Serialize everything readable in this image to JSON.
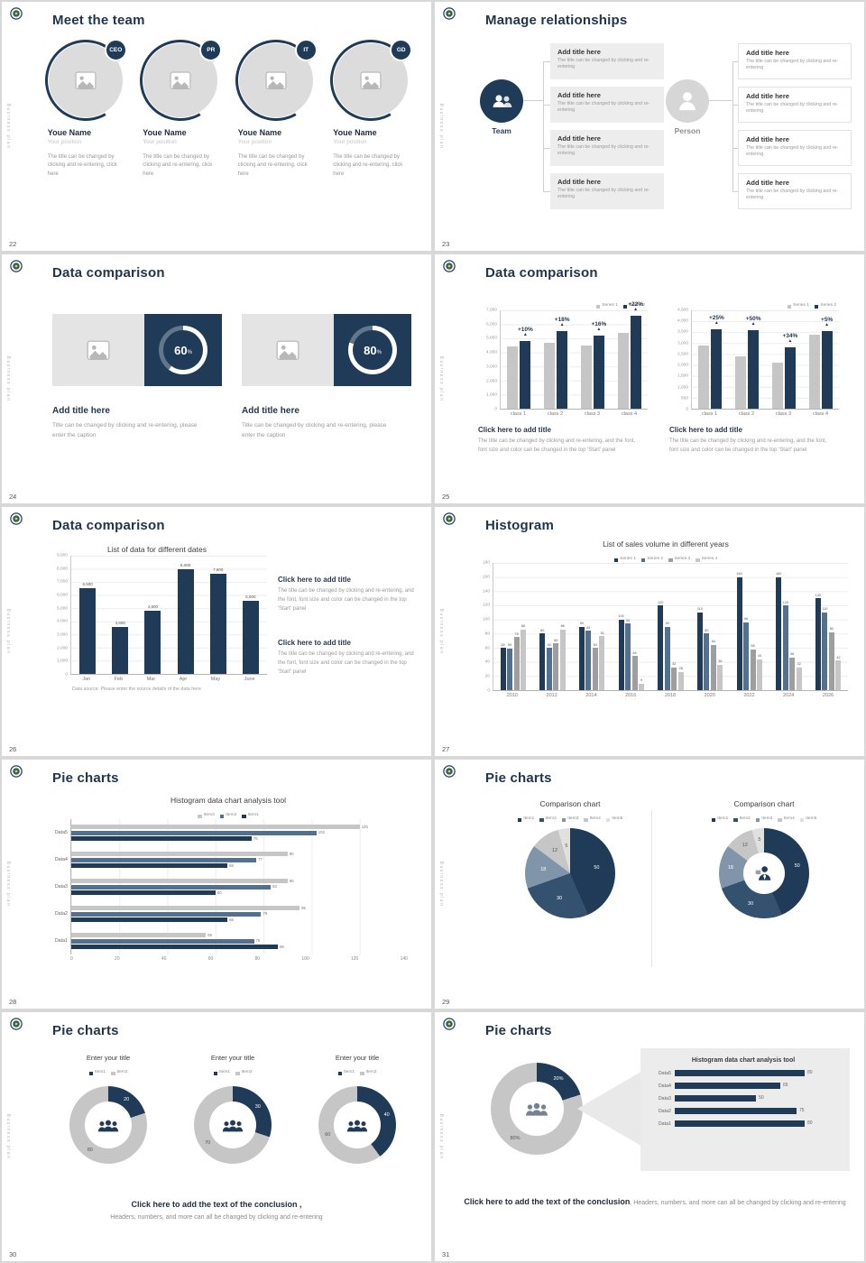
{
  "global": {
    "vertical_text": "Business plan",
    "palette": {
      "navy": "#1f3b57",
      "navy2": "#34516f",
      "steel": "#53718f",
      "slate": "#8095aa",
      "gray": "#9e9e9e",
      "silver": "#c6c6c6",
      "light": "#e0e0e0",
      "white": "#ffffff",
      "ghost": "rgba(255,255,255,0.3)"
    }
  },
  "slides": {
    "s22": {
      "number": "22",
      "title": "Meet the team",
      "members": [
        {
          "badge": "CEO",
          "name": "Youe Name",
          "position": "Your position",
          "caption": "The title can be changed by clicking and re-entering, click here"
        },
        {
          "badge": "PR",
          "name": "Youe Name",
          "position": "Your position",
          "caption": "The title can be changed by clicking and re-entering, click here"
        },
        {
          "badge": "IT",
          "name": "Youe Name",
          "position": "Your position",
          "caption": "The title can be changed by clicking and re-entering, click here"
        },
        {
          "badge": "GD",
          "name": "Youe Name",
          "position": "Your position",
          "caption": "The title can be changed by clicking and re-entering, click here"
        }
      ]
    },
    "s23": {
      "number": "23",
      "title": "Manage relationships",
      "team_label": "Team",
      "person_label": "Person",
      "item_title": "Add title here",
      "item_body": "The title can be changed by clicking and re-entering"
    },
    "s24": {
      "number": "24",
      "title": "Data comparison",
      "cards": [
        {
          "percent": "60",
          "unit": "%",
          "heading": "Add title here",
          "body": "Title can be changed by clicking and re-entering, please enter the caption",
          "ring": {
            "values": [
              60,
              40
            ],
            "colors": [
              "white",
              "ghost"
            ]
          }
        },
        {
          "percent": "80",
          "unit": "%",
          "heading": "Add title here",
          "body": "Title can be changed by clicking and re-entering, please enter the caption",
          "ring": {
            "values": [
              80,
              20
            ],
            "colors": [
              "white",
              "ghost"
            ]
          }
        }
      ]
    },
    "s25": {
      "number": "25",
      "title": "Data comparison",
      "legend": [
        "Series 1",
        "Series 2"
      ],
      "legend_colors": [
        "silver",
        "navy"
      ],
      "caption_title": "Click here to add title",
      "caption_body": "The title can be changed by clicking and re-entering, and the font, font size and color can be changed in the top 'Start' panel",
      "charts": [
        {
          "ymax": 7000,
          "yticks": [
            "7,000",
            "6,000",
            "5,000",
            "4,000",
            "3,000",
            "2,000",
            "1,000",
            "0"
          ],
          "categories": [
            "class 1",
            "class 2",
            "class 3",
            "class 4"
          ],
          "series": [
            {
              "name": "Series 1",
              "color": "silver",
              "values": [
                4400,
                4700,
                4500,
                5400
              ]
            },
            {
              "name": "Series 2",
              "color": "navy",
              "values": [
                4840,
                5550,
                5220,
                6590
              ]
            }
          ],
          "deltas": [
            "+10%",
            "+18%",
            "+16%",
            "+22%"
          ]
        },
        {
          "ymax": 4500,
          "yticks": [
            "4,500",
            "4,000",
            "3,500",
            "3,000",
            "2,500",
            "2,000",
            "1,500",
            "1,000",
            "500",
            "0"
          ],
          "categories": [
            "class 1",
            "class 2",
            "class 3",
            "class 4"
          ],
          "series": [
            {
              "name": "Series 1",
              "color": "silver",
              "values": [
                2900,
                2400,
                2100,
                3400
              ]
            },
            {
              "name": "Series 2",
              "color": "navy",
              "values": [
                3620,
                3600,
                2810,
                3570
              ]
            }
          ],
          "deltas": [
            "+25%",
            "+50%",
            "+34%",
            "+5%"
          ]
        }
      ]
    },
    "s26": {
      "number": "26",
      "title": "Data comparison",
      "chart": {
        "title": "List of data for different dates",
        "ymax": 9000,
        "yticks": [
          "9,000",
          "8,000",
          "7,000",
          "6,000",
          "5,000",
          "4,000",
          "3,000",
          "2,000",
          "1,000",
          "0"
        ],
        "categories": [
          "Jan",
          "Feb",
          "Mar",
          "Apr",
          "May",
          "June"
        ],
        "series": [
          {
            "name": "Data",
            "color": "navy",
            "values": [
              6500,
              3600,
              4800,
              8000,
              7600,
              5600
            ]
          }
        ],
        "value_labels": [
          "6,500",
          "3,600",
          "4,800",
          "8,000",
          "7,600",
          "5,600"
        ],
        "source": "Data source: Please enter the source details of the data here"
      },
      "captions": [
        {
          "title": "Click here to add title",
          "body": "The title can be changed by clicking and re-entering, and the font, font size and color can be changed in the top 'Start' panel"
        },
        {
          "title": "Click here to add title",
          "body": "The title can be changed by clicking and re-entering, and the font, font size and color can be changed in the top 'Start' panel"
        }
      ]
    },
    "s27": {
      "number": "27",
      "title": "Histogram",
      "chart": {
        "title": "List of sales volume in different years",
        "legend": [
          "Series 1",
          "Series 2",
          "Series 3",
          "Series 4"
        ],
        "legend_colors": [
          "navy",
          "steel",
          "gray",
          "silver"
        ],
        "ymax": 180,
        "yticks": [
          "180",
          "160",
          "140",
          "120",
          "100",
          "80",
          "60",
          "40",
          "20",
          "0"
        ],
        "categories": [
          "2010",
          "2012",
          "2014",
          "2016",
          "2018",
          "2020",
          "2022",
          "2024",
          "2026"
        ],
        "colors": [
          "navy",
          "steel",
          "gray",
          "silver"
        ],
        "show_values": true,
        "groups": [
          [
            60,
            59,
            75,
            86
          ],
          [
            80,
            60,
            66,
            86
          ],
          [
            90,
            84,
            60,
            76
          ],
          [
            100,
            94,
            48,
            9
          ],
          [
            120,
            90,
            32,
            26
          ],
          [
            110,
            80,
            64,
            36
          ],
          [
            160,
            96,
            58,
            44
          ],
          [
            160,
            120,
            46,
            32
          ],
          [
            130,
            110,
            82,
            42
          ]
        ]
      }
    },
    "s28": {
      "number": "28",
      "title": "Pie charts",
      "chart": {
        "title": "Histogram data chart analysis tool",
        "legend": [
          "Item3",
          "Item2",
          "Item1"
        ],
        "legend_colors": [
          "silver",
          "steel",
          "navy"
        ],
        "xmax": 140,
        "xticks": [
          "0",
          "20",
          "40",
          "60",
          "80",
          "100",
          "120",
          "140"
        ],
        "rows": [
          {
            "label": "Data5",
            "bars": [
              {
                "v": 120,
                "color": "silver"
              },
              {
                "v": 102,
                "color": "steel"
              },
              {
                "v": 75,
                "color": "navy"
              }
            ]
          },
          {
            "label": "Data4",
            "bars": [
              {
                "v": 90,
                "color": "silver"
              },
              {
                "v": 77,
                "color": "steel"
              },
              {
                "v": 65,
                "color": "navy"
              }
            ]
          },
          {
            "label": "Data3",
            "bars": [
              {
                "v": 90,
                "color": "silver"
              },
              {
                "v": 83,
                "color": "steel"
              },
              {
                "v": 60,
                "color": "navy"
              }
            ]
          },
          {
            "label": "Data2",
            "bars": [
              {
                "v": 95,
                "color": "silver"
              },
              {
                "v": 79,
                "color": "steel"
              },
              {
                "v": 65,
                "color": "navy"
              }
            ]
          },
          {
            "label": "Data1",
            "bars": [
              {
                "v": 56,
                "color": "silver"
              },
              {
                "v": 76,
                "color": "steel"
              },
              {
                "v": 86,
                "color": "navy"
              }
            ]
          }
        ]
      }
    },
    "s29": {
      "number": "29",
      "title": "Pie charts",
      "left": {
        "title": "Comparison chart",
        "legend": [
          "Item1",
          "Item2",
          "Item3",
          "Item4",
          "Item5"
        ],
        "values": [
          50,
          30,
          18,
          12,
          5
        ],
        "colors": [
          "navy",
          "navy2",
          "slate",
          "silver",
          "light"
        ],
        "labels": [
          "50",
          "30",
          "18",
          "12",
          "5"
        ]
      },
      "right": {
        "title": "Comparison chart",
        "legend": [
          "Item1",
          "Item2",
          "Item3",
          "Item4",
          "Item5"
        ],
        "values": [
          50,
          30,
          18,
          12,
          5
        ],
        "colors": [
          "navy",
          "navy2",
          "slate",
          "silver",
          "light"
        ],
        "labels": [
          "50",
          "30",
          "18",
          "12",
          "5"
        ]
      }
    },
    "s30": {
      "number": "30",
      "title": "Pie charts",
      "legend_colors": [
        "navy",
        "silver"
      ],
      "donuts": [
        {
          "title": "Enter your title",
          "legend": [
            "Item1",
            "Item2"
          ],
          "values": [
            20,
            80
          ],
          "colors": [
            "navy",
            "silver"
          ],
          "labels": [
            "20",
            "80"
          ]
        },
        {
          "title": "Enter your title",
          "legend": [
            "Item1",
            "Item2"
          ],
          "values": [
            30,
            70
          ],
          "colors": [
            "navy",
            "silver"
          ],
          "labels": [
            "30",
            "70"
          ]
        },
        {
          "title": "Enter your title",
          "legend": [
            "Item1",
            "Item2"
          ],
          "values": [
            40,
            60
          ],
          "colors": [
            "navy",
            "silver"
          ],
          "labels": [
            "40",
            "60"
          ]
        }
      ],
      "conclusion_bold": "Click here to add the text of the conclusion ,",
      "conclusion_body": "Headers, numbers, and more can all be changed by clicking and re-entering"
    },
    "s31": {
      "number": "31",
      "title": "Pie charts",
      "donut": {
        "values": [
          20,
          80
        ],
        "colors": [
          "navy",
          "silver"
        ],
        "labels": [
          "20%",
          "80%"
        ]
      },
      "panel": {
        "title": "Histogram data chart analysis tool",
        "max": 90,
        "rows": [
          {
            "label": "Data5",
            "v": 80
          },
          {
            "label": "Data4",
            "v": 65
          },
          {
            "label": "Data3",
            "v": 50
          },
          {
            "label": "Data2",
            "v": 75
          },
          {
            "label": "Data1",
            "v": 80
          }
        ]
      },
      "conclusion_bold": "Click here to add the text of the conclusion",
      "conclusion_body": ", Headers, numbers, and more can all be changed by clicking and re-entering"
    }
  }
}
